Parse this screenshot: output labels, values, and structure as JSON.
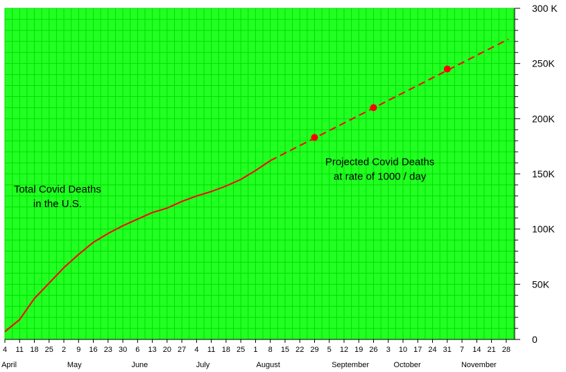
{
  "chart_data": {
    "type": "line",
    "title": "",
    "xlabel": "",
    "ylabel": "",
    "ylim": [
      0,
      300000
    ],
    "y_ticks": [
      {
        "value": 0,
        "label": "0"
      },
      {
        "value": 50000,
        "label": "50K"
      },
      {
        "value": 100000,
        "label": "100K"
      },
      {
        "value": 150000,
        "label": "150K"
      },
      {
        "value": 200000,
        "label": "200K"
      },
      {
        "value": 250000,
        "label": "250K"
      },
      {
        "value": 300000,
        "label": "300 K"
      }
    ],
    "y_axis_side": "right",
    "grid": true,
    "grid_color": "#00dd00",
    "background_color": "#22ff22",
    "line_color": "#ff0000",
    "x_start_date": "2020-04-04",
    "x_end_date": "2020-12-02",
    "x_week_ticks": [
      {
        "date": "2020-04-04",
        "label": "4"
      },
      {
        "date": "2020-04-11",
        "label": "11"
      },
      {
        "date": "2020-04-18",
        "label": "18"
      },
      {
        "date": "2020-04-25",
        "label": "25"
      },
      {
        "date": "2020-05-02",
        "label": "2"
      },
      {
        "date": "2020-05-09",
        "label": "9"
      },
      {
        "date": "2020-05-16",
        "label": "16"
      },
      {
        "date": "2020-05-23",
        "label": "23"
      },
      {
        "date": "2020-05-30",
        "label": "30"
      },
      {
        "date": "2020-06-06",
        "label": "6"
      },
      {
        "date": "2020-06-13",
        "label": "13"
      },
      {
        "date": "2020-06-20",
        "label": "20"
      },
      {
        "date": "2020-06-27",
        "label": "27"
      },
      {
        "date": "2020-07-04",
        "label": "4"
      },
      {
        "date": "2020-07-11",
        "label": "11"
      },
      {
        "date": "2020-07-18",
        "label": "18"
      },
      {
        "date": "2020-07-25",
        "label": "25"
      },
      {
        "date": "2020-08-01",
        "label": "1"
      },
      {
        "date": "2020-08-08",
        "label": "8"
      },
      {
        "date": "2020-08-15",
        "label": "15"
      },
      {
        "date": "2020-08-22",
        "label": "22"
      },
      {
        "date": "2020-08-29",
        "label": "29"
      },
      {
        "date": "2020-09-05",
        "label": "5"
      },
      {
        "date": "2020-09-12",
        "label": "12"
      },
      {
        "date": "2020-09-19",
        "label": "19"
      },
      {
        "date": "2020-09-26",
        "label": "26"
      },
      {
        "date": "2020-10-03",
        "label": "3"
      },
      {
        "date": "2020-10-10",
        "label": "10"
      },
      {
        "date": "2020-10-17",
        "label": "17"
      },
      {
        "date": "2020-10-24",
        "label": "24"
      },
      {
        "date": "2020-10-31",
        "label": "31"
      },
      {
        "date": "2020-11-07",
        "label": "7"
      },
      {
        "date": "2020-11-14",
        "label": "14"
      },
      {
        "date": "2020-11-21",
        "label": "21"
      },
      {
        "date": "2020-11-28",
        "label": "28"
      }
    ],
    "x_month_labels": [
      {
        "date": "2020-04-06",
        "label": "April"
      },
      {
        "date": "2020-05-07",
        "label": "May"
      },
      {
        "date": "2020-06-07",
        "label": "June"
      },
      {
        "date": "2020-07-07",
        "label": "July"
      },
      {
        "date": "2020-08-07",
        "label": "August"
      },
      {
        "date": "2020-09-15",
        "label": "September"
      },
      {
        "date": "2020-10-12",
        "label": "October"
      },
      {
        "date": "2020-11-15",
        "label": "November"
      }
    ],
    "series": [
      {
        "style": "solid",
        "points": [
          {
            "x": "2020-04-04",
            "y": 7000
          },
          {
            "x": "2020-04-11",
            "y": 18000
          },
          {
            "x": "2020-04-18",
            "y": 37000
          },
          {
            "x": "2020-04-25",
            "y": 51000
          },
          {
            "x": "2020-05-02",
            "y": 65000
          },
          {
            "x": "2020-05-09",
            "y": 77000
          },
          {
            "x": "2020-05-16",
            "y": 88000
          },
          {
            "x": "2020-05-23",
            "y": 96000
          },
          {
            "x": "2020-05-30",
            "y": 103000
          },
          {
            "x": "2020-06-06",
            "y": 109000
          },
          {
            "x": "2020-06-13",
            "y": 115000
          },
          {
            "x": "2020-06-20",
            "y": 119000
          },
          {
            "x": "2020-06-27",
            "y": 125000
          },
          {
            "x": "2020-07-04",
            "y": 130000
          },
          {
            "x": "2020-07-11",
            "y": 134000
          },
          {
            "x": "2020-07-18",
            "y": 139000
          },
          {
            "x": "2020-07-25",
            "y": 145000
          },
          {
            "x": "2020-08-01",
            "y": 153000
          },
          {
            "x": "2020-08-08",
            "y": 162000
          }
        ]
      },
      {
        "style": "dashed",
        "points": [
          {
            "x": "2020-08-08",
            "y": 162000
          },
          {
            "x": "2020-11-29",
            "y": 272000
          }
        ]
      }
    ],
    "markers": [
      {
        "x": "2020-08-29",
        "y": 183000
      },
      {
        "x": "2020-09-26",
        "y": 210000
      },
      {
        "x": "2020-10-31",
        "y": 245000
      }
    ],
    "annotations": [
      {
        "lines": [
          "Total Covid Deaths",
          "in the U.S."
        ],
        "x": "2020-04-29",
        "y": 133000
      },
      {
        "lines": [
          "Projected Covid Deaths",
          "at rate of 1000 / day"
        ],
        "x": "2020-09-29",
        "y": 158000
      }
    ]
  }
}
